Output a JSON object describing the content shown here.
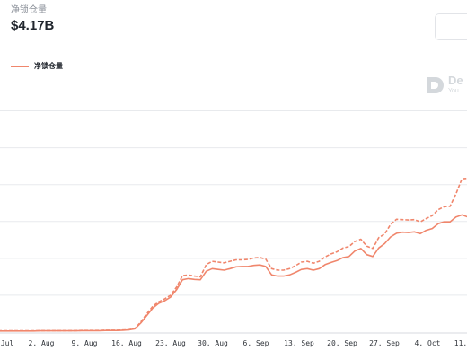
{
  "header": {
    "metric_label": "净锁仓量",
    "metric_value": "$4.17B"
  },
  "legend": {
    "label": "净锁仓量",
    "color": "#f0866c"
  },
  "watermark": {
    "name": "De",
    "subtitle": "You"
  },
  "chart_data": {
    "type": "line",
    "title": "",
    "xlabel": "",
    "ylabel": "",
    "grid": true,
    "legend_position": "top-left",
    "x_tick_labels": [
      "Jul",
      "2. Aug",
      "9. Aug",
      "16. Aug",
      "23. Aug",
      "30. Aug",
      "6. Sep",
      "13. Sep",
      "20. Sep",
      "27. Sep",
      "4. Oct",
      "11."
    ],
    "x": [
      "2021-07-26",
      "2021-07-27",
      "2021-07-28",
      "2021-07-29",
      "2021-07-30",
      "2021-07-31",
      "2021-08-01",
      "2021-08-02",
      "2021-08-03",
      "2021-08-04",
      "2021-08-05",
      "2021-08-06",
      "2021-08-07",
      "2021-08-08",
      "2021-08-09",
      "2021-08-10",
      "2021-08-11",
      "2021-08-12",
      "2021-08-13",
      "2021-08-14",
      "2021-08-15",
      "2021-08-16",
      "2021-08-17",
      "2021-08-18",
      "2021-08-19",
      "2021-08-20",
      "2021-08-21",
      "2021-08-22",
      "2021-08-23",
      "2021-08-24",
      "2021-08-25",
      "2021-08-26",
      "2021-08-27",
      "2021-08-28",
      "2021-08-29",
      "2021-08-30",
      "2021-08-31",
      "2021-09-01",
      "2021-09-02",
      "2021-09-03",
      "2021-09-04",
      "2021-09-05",
      "2021-09-06",
      "2021-09-07",
      "2021-09-08",
      "2021-09-09",
      "2021-09-10",
      "2021-09-11",
      "2021-09-12",
      "2021-09-13",
      "2021-09-14",
      "2021-09-15",
      "2021-09-16",
      "2021-09-17",
      "2021-09-18",
      "2021-09-19",
      "2021-09-20",
      "2021-09-21",
      "2021-09-22",
      "2021-09-23",
      "2021-09-24",
      "2021-09-25",
      "2021-09-26",
      "2021-09-27",
      "2021-09-28",
      "2021-09-29",
      "2021-09-30",
      "2021-10-01",
      "2021-10-02",
      "2021-10-03",
      "2021-10-04",
      "2021-10-05",
      "2021-10-06",
      "2021-10-07",
      "2021-10-08",
      "2021-10-09",
      "2021-10-10",
      "2021-10-11",
      "2021-10-12",
      "2021-10-13"
    ],
    "series": [
      {
        "name": "净锁仓量",
        "style": "solid",
        "values": [
          0.03,
          0.03,
          0.03,
          0.03,
          0.03,
          0.03,
          0.03,
          0.035,
          0.035,
          0.035,
          0.035,
          0.035,
          0.035,
          0.035,
          0.04,
          0.04,
          0.04,
          0.04,
          0.045,
          0.045,
          0.045,
          0.05,
          0.06,
          0.09,
          0.25,
          0.45,
          0.65,
          0.78,
          0.85,
          0.95,
          1.15,
          1.42,
          1.45,
          1.43,
          1.42,
          1.65,
          1.72,
          1.7,
          1.68,
          1.72,
          1.77,
          1.78,
          1.78,
          1.81,
          1.82,
          1.78,
          1.55,
          1.52,
          1.52,
          1.55,
          1.62,
          1.7,
          1.72,
          1.68,
          1.72,
          1.83,
          1.89,
          1.94,
          2.02,
          2.05,
          2.2,
          2.27,
          2.1,
          2.05,
          2.28,
          2.4,
          2.58,
          2.68,
          2.71,
          2.7,
          2.72,
          2.67,
          2.76,
          2.81,
          2.94,
          2.99,
          2.99,
          3.12,
          3.18,
          3.12
        ]
      },
      {
        "name": "",
        "style": "dashed",
        "values": [
          0.035,
          0.035,
          0.035,
          0.035,
          0.035,
          0.035,
          0.035,
          0.04,
          0.04,
          0.04,
          0.04,
          0.04,
          0.04,
          0.04,
          0.045,
          0.045,
          0.045,
          0.045,
          0.05,
          0.05,
          0.05,
          0.055,
          0.065,
          0.1,
          0.28,
          0.5,
          0.7,
          0.82,
          0.9,
          1.0,
          1.22,
          1.53,
          1.55,
          1.52,
          1.5,
          1.83,
          1.92,
          1.9,
          1.88,
          1.92,
          1.96,
          1.96,
          1.97,
          2.01,
          2.02,
          1.98,
          1.72,
          1.68,
          1.68,
          1.72,
          1.8,
          1.9,
          1.92,
          1.87,
          1.92,
          2.04,
          2.12,
          2.18,
          2.28,
          2.32,
          2.46,
          2.52,
          2.33,
          2.27,
          2.56,
          2.66,
          2.92,
          3.06,
          3.05,
          3.04,
          3.05,
          2.99,
          3.08,
          3.16,
          3.32,
          3.4,
          3.41,
          3.75,
          4.16,
          4.17
        ]
      }
    ],
    "ylim": [
      0,
      6.5
    ]
  }
}
